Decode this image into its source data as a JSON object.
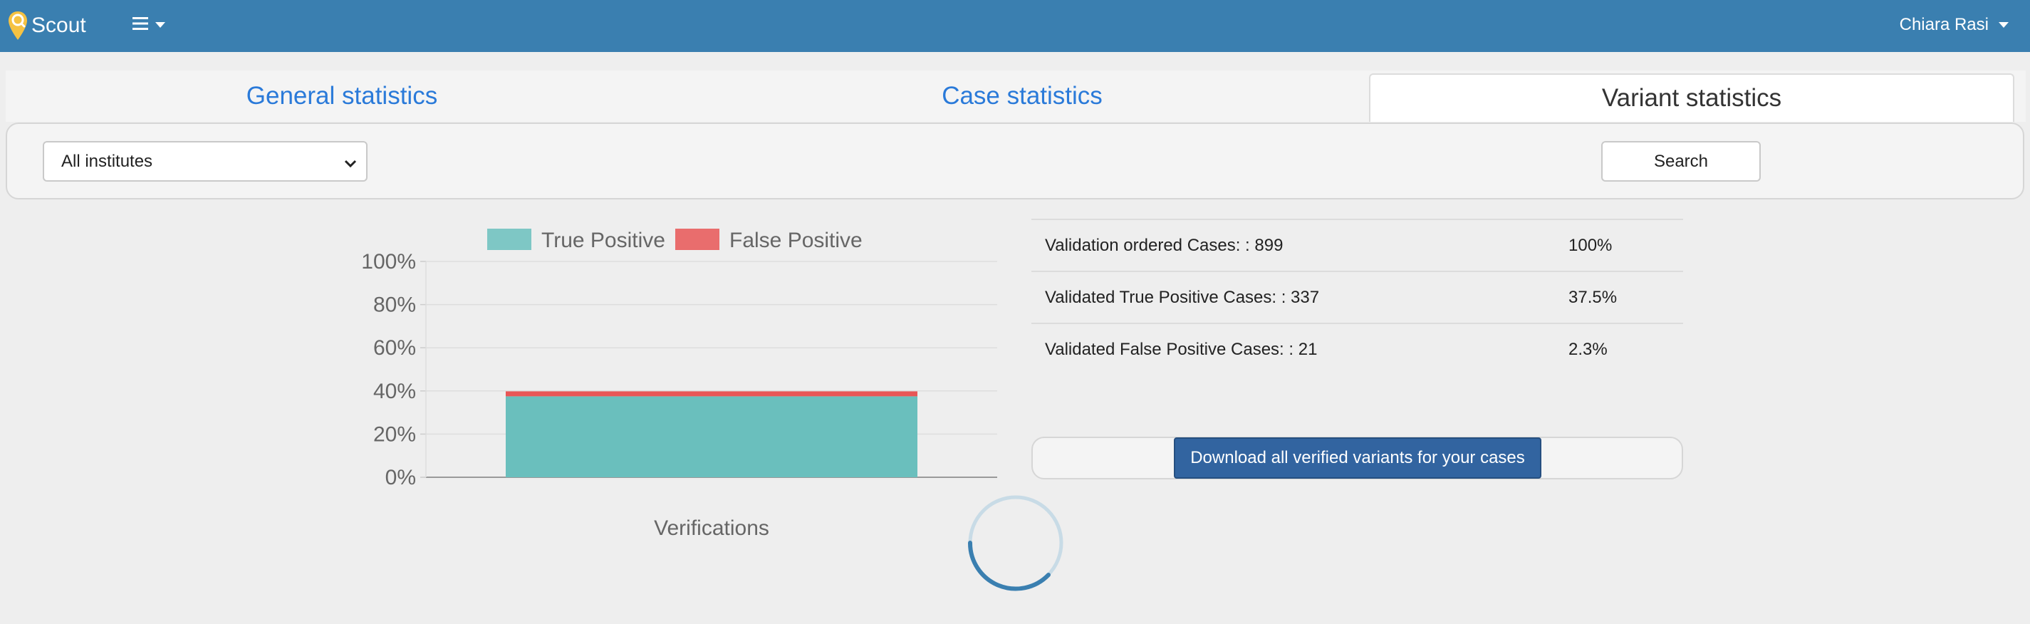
{
  "navbar": {
    "brand": "Scout",
    "user_name": "Chiara Rasi",
    "colors": {
      "bar": "#3a7fb0",
      "logo": "#f5c242"
    }
  },
  "tabs": [
    {
      "label": "General statistics",
      "active": false
    },
    {
      "label": "Case statistics",
      "active": false
    },
    {
      "label": "Variant statistics",
      "active": true
    }
  ],
  "filter": {
    "institute_select": "All institutes",
    "search_label": "Search"
  },
  "stats": {
    "rows": [
      {
        "label": "Validation ordered Cases: : 899",
        "percent": "100%"
      },
      {
        "label": "Validated True Positive Cases: : 337",
        "percent": "37.5%"
      },
      {
        "label": "Validated False Positive Cases: : 21",
        "percent": "2.3%"
      }
    ],
    "download_label": "Download all verified variants for your cases"
  },
  "chart_data": {
    "type": "bar",
    "stacked": true,
    "categories": [
      "Verifications"
    ],
    "series": [
      {
        "name": "True Positive",
        "values": [
          37.5
        ],
        "color": "#6abfbd"
      },
      {
        "name": "False Positive",
        "values": [
          2.3
        ],
        "color": "#e85656"
      }
    ],
    "xlabel": "Verifications",
    "ylabel": "",
    "ylim": [
      0,
      100
    ],
    "yticks": [
      "0%",
      "20%",
      "40%",
      "60%",
      "80%",
      "100%"
    ],
    "legend": "top",
    "grid": true
  }
}
